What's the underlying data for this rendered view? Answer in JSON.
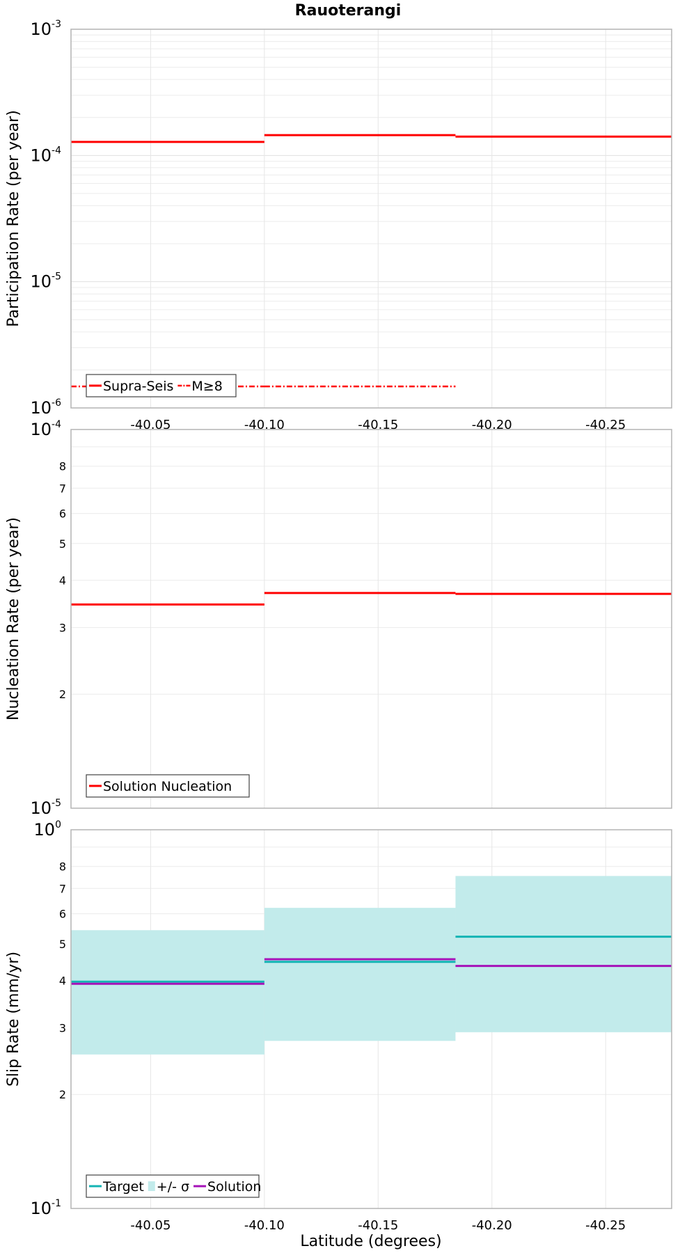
{
  "figure": {
    "title": "Rauoterangi",
    "xlabel": "Latitude (degrees)"
  },
  "chart_data": [
    {
      "type": "line",
      "ylabel": "Participation Rate (per year)",
      "yscale": "log",
      "ylim": [
        1e-06,
        0.001
      ],
      "xlim": [
        -40.015,
        -40.279
      ],
      "x_tick_values": [
        -40.05,
        -40.1,
        -40.15,
        -40.2,
        -40.25
      ],
      "x_tick_labels": [
        "-40.05",
        "-40.10",
        "-40.15",
        "-40.20",
        "-40.25"
      ],
      "y_major_ticks": [
        {
          "value": 1e-06,
          "base": "10",
          "exp": "-6"
        },
        {
          "value": 1e-05,
          "base": "10",
          "exp": "-5"
        },
        {
          "value": 0.0001,
          "base": "10",
          "exp": "-4"
        },
        {
          "value": 0.001,
          "base": "10",
          "exp": "-3"
        }
      ],
      "y_minor_labels": [],
      "grid": true,
      "legend_position": "bottom-left",
      "series": [
        {
          "name": "Supra-Seis",
          "color": "#ff0000",
          "style": "solid",
          "segments": [
            {
              "x0": -40.015,
              "x1": -40.1,
              "y": 0.000128
            },
            {
              "x0": -40.1,
              "x1": -40.184,
              "y": 0.000145
            },
            {
              "x0": -40.184,
              "x1": -40.279,
              "y": 0.000141
            }
          ]
        },
        {
          "name": "M≥8",
          "color": "#ff0000",
          "style": "dashdot",
          "segments": [
            {
              "x0": -40.015,
              "x1": -40.1,
              "y": 1.48e-06
            },
            {
              "x0": -40.1,
              "x1": -40.184,
              "y": 1.48e-06
            }
          ]
        }
      ]
    },
    {
      "type": "line",
      "ylabel": "Nucleation Rate (per year)",
      "yscale": "log",
      "ylim": [
        1e-05,
        0.0001
      ],
      "xlim": [
        -40.015,
        -40.279
      ],
      "x_tick_values": [
        -40.05,
        -40.1,
        -40.15,
        -40.2,
        -40.25
      ],
      "x_tick_labels": [],
      "y_major_ticks": [
        {
          "value": 1e-05,
          "base": "10",
          "exp": "-5"
        },
        {
          "value": 0.0001,
          "base": "10",
          "exp": "-4"
        }
      ],
      "y_minor_labels": [
        {
          "value": 2e-05,
          "label": "2"
        },
        {
          "value": 3e-05,
          "label": "3"
        },
        {
          "value": 4e-05,
          "label": "4"
        },
        {
          "value": 5e-05,
          "label": "5"
        },
        {
          "value": 6e-05,
          "label": "6"
        },
        {
          "value": 7e-05,
          "label": "7"
        },
        {
          "value": 8e-05,
          "label": "8"
        }
      ],
      "grid": true,
      "legend_position": "bottom-left",
      "series": [
        {
          "name": "Solution Nucleation",
          "color": "#ff0000",
          "style": "solid",
          "segments": [
            {
              "x0": -40.015,
              "x1": -40.1,
              "y": 3.45e-05
            },
            {
              "x0": -40.1,
              "x1": -40.184,
              "y": 3.7e-05
            },
            {
              "x0": -40.184,
              "x1": -40.279,
              "y": 3.68e-05
            }
          ]
        }
      ]
    },
    {
      "type": "line",
      "ylabel": "Slip Rate (mm/yr)",
      "yscale": "log",
      "ylim": [
        0.1,
        1
      ],
      "xlim": [
        -40.015,
        -40.279
      ],
      "x_tick_values": [
        -40.05,
        -40.1,
        -40.15,
        -40.2,
        -40.25
      ],
      "x_tick_labels": [
        "-40.05",
        "-40.10",
        "-40.15",
        "-40.20",
        "-40.25"
      ],
      "y_major_ticks": [
        {
          "value": 0.1,
          "base": "10",
          "exp": "-1"
        },
        {
          "value": 1,
          "base": "10",
          "exp": "0"
        }
      ],
      "y_minor_labels": [
        {
          "value": 0.2,
          "label": "2"
        },
        {
          "value": 0.3,
          "label": "3"
        },
        {
          "value": 0.4,
          "label": "4"
        },
        {
          "value": 0.5,
          "label": "5"
        },
        {
          "value": 0.6,
          "label": "6"
        },
        {
          "value": 0.7,
          "label": "7"
        },
        {
          "value": 0.8,
          "label": "8"
        }
      ],
      "grid": true,
      "legend_position": "bottom-left",
      "bands": [
        {
          "name": "+/- σ",
          "color": "#c2ebeb",
          "segments": [
            {
              "x0": -40.015,
              "x1": -40.1,
              "low": 0.255,
              "high": 0.543
            },
            {
              "x0": -40.1,
              "x1": -40.184,
              "low": 0.277,
              "high": 0.622
            },
            {
              "x0": -40.184,
              "x1": -40.279,
              "low": 0.292,
              "high": 0.755
            }
          ]
        }
      ],
      "series": [
        {
          "name": "Target",
          "color": "#14b4b4",
          "style": "solid",
          "segments": [
            {
              "x0": -40.015,
              "x1": -40.1,
              "y": 0.397
            },
            {
              "x0": -40.1,
              "x1": -40.184,
              "y": 0.448
            },
            {
              "x0": -40.184,
              "x1": -40.279,
              "y": 0.522
            }
          ]
        },
        {
          "name": "Solution",
          "color": "#a512b8",
          "style": "solid",
          "segments": [
            {
              "x0": -40.015,
              "x1": -40.1,
              "y": 0.392
            },
            {
              "x0": -40.1,
              "x1": -40.184,
              "y": 0.455
            },
            {
              "x0": -40.184,
              "x1": -40.279,
              "y": 0.437
            }
          ]
        }
      ]
    }
  ]
}
